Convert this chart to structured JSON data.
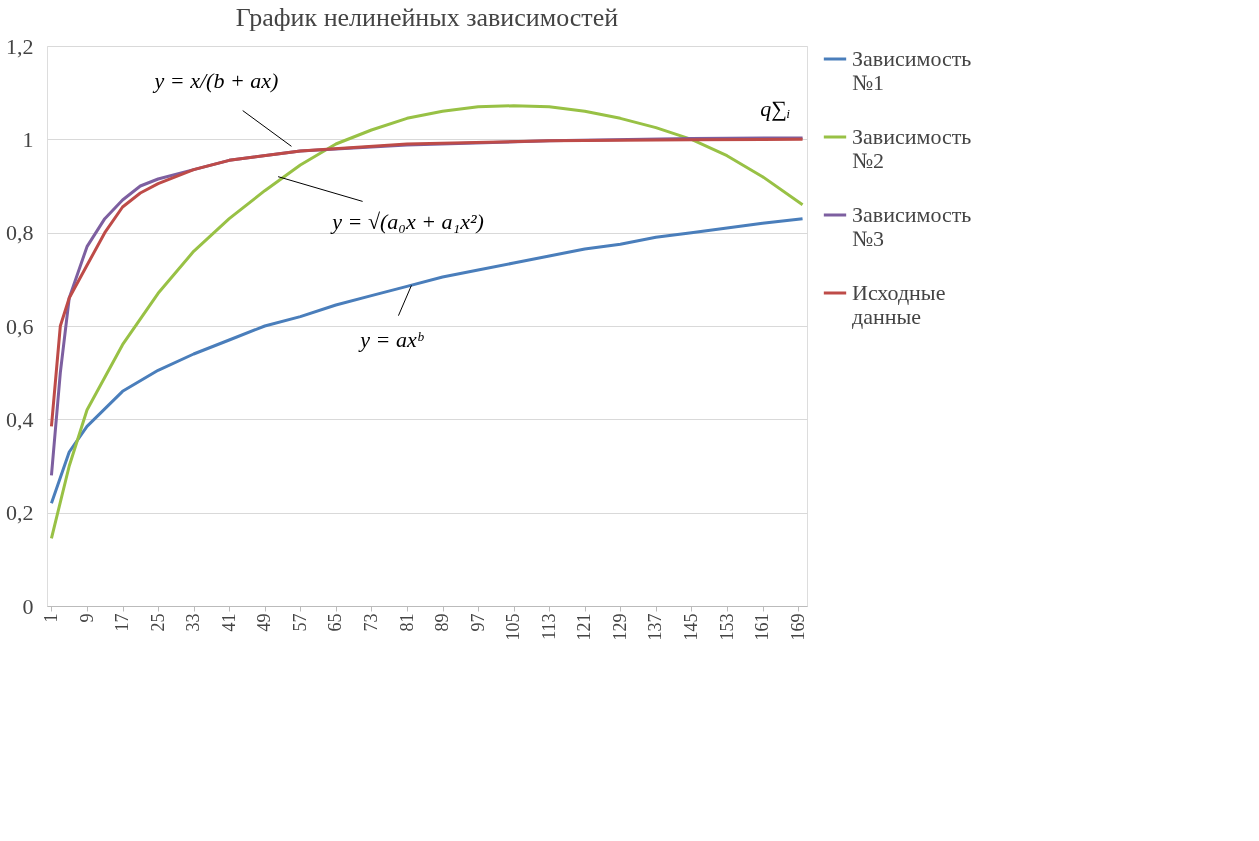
{
  "chart_data": {
    "type": "line",
    "title": "График нелинейных зависимостей",
    "xlim": [
      0,
      171
    ],
    "xticks": [
      1,
      9,
      17,
      25,
      33,
      41,
      49,
      57,
      65,
      73,
      81,
      89,
      97,
      105,
      113,
      121,
      129,
      137,
      145,
      153,
      161,
      169
    ],
    "ylim": [
      0,
      1.2
    ],
    "yticks": [
      0,
      {
        "value": 0.2,
        "label": "0,2"
      },
      {
        "value": 0.4,
        "label": "0,4"
      },
      {
        "value": 0.6,
        "label": "0,6"
      },
      {
        "value": 0.8,
        "label": "0,8"
      },
      1,
      {
        "value": 1.2,
        "label": "1,2"
      }
    ],
    "grid": "y",
    "legend": "right",
    "marker": "none",
    "line_style": "solid",
    "series": [
      {
        "name": "Зависимость №1",
        "color": "#4a7ebb",
        "x": [
          1,
          5,
          9,
          17,
          25,
          33,
          41,
          49,
          57,
          65,
          73,
          81,
          89,
          97,
          105,
          113,
          121,
          129,
          137,
          145,
          153,
          161,
          170
        ],
        "values": [
          0.22,
          0.33,
          0.385,
          0.46,
          0.505,
          0.54,
          0.57,
          0.6,
          0.62,
          0.645,
          0.665,
          0.685,
          0.705,
          0.72,
          0.735,
          0.75,
          0.765,
          0.775,
          0.79,
          0.8,
          0.81,
          0.82,
          0.83
        ]
      },
      {
        "name": "Зависимость №2",
        "color": "#98c145",
        "x": [
          1,
          5,
          9,
          17,
          25,
          33,
          41,
          49,
          57,
          65,
          73,
          81,
          89,
          97,
          105,
          113,
          121,
          129,
          137,
          145,
          153,
          161,
          170
        ],
        "values": [
          0.145,
          0.3,
          0.42,
          0.56,
          0.67,
          0.76,
          0.83,
          0.89,
          0.945,
          0.99,
          1.02,
          1.045,
          1.06,
          1.07,
          1.072,
          1.07,
          1.06,
          1.045,
          1.025,
          1.0,
          0.965,
          0.92,
          0.86
        ]
      },
      {
        "name": "Зависимость №3",
        "color": "#7d5fa0",
        "x": [
          1,
          3,
          5,
          9,
          13,
          17,
          21,
          25,
          33,
          41,
          57,
          81,
          113,
          145,
          170
        ],
        "values": [
          0.28,
          0.5,
          0.66,
          0.77,
          0.83,
          0.87,
          0.9,
          0.915,
          0.935,
          0.955,
          0.975,
          0.988,
          0.997,
          1.002,
          1.003
        ]
      },
      {
        "name": "Исходные данные",
        "color": "#be4b48",
        "x": [
          1,
          3,
          5,
          9,
          13,
          17,
          21,
          25,
          33,
          41,
          57,
          81,
          113,
          145,
          170
        ],
        "values": [
          0.385,
          0.6,
          0.66,
          0.73,
          0.8,
          0.855,
          0.885,
          0.905,
          0.935,
          0.955,
          0.975,
          0.99,
          0.997,
          0.999,
          1.0
        ]
      }
    ],
    "annotations": [
      {
        "text": "y = x/(b + ax)",
        "x": 55,
        "y": 0.985
      },
      {
        "text": "y = √(a₀x + a₁x²)",
        "x": 52,
        "y": 0.92
      },
      {
        "text": "y = axᵇ",
        "x": 82,
        "y": 0.687
      },
      {
        "text": "q∑ᵢ",
        "x": 165,
        "y": 1.0
      }
    ]
  }
}
